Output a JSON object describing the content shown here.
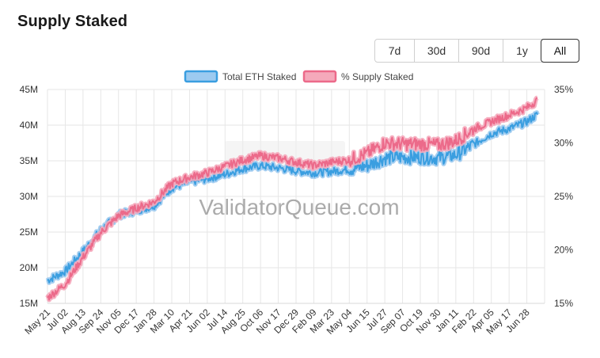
{
  "page": {
    "title": "Supply Staked"
  },
  "range_buttons": [
    {
      "label": "7d",
      "active": false
    },
    {
      "label": "30d",
      "active": false
    },
    {
      "label": "90d",
      "active": false
    },
    {
      "label": "1y",
      "active": false
    },
    {
      "label": "All",
      "active": true
    }
  ],
  "watermark": "ValidatorQueue.com",
  "colors": {
    "eth_line": "#3a9ee0",
    "eth_fill": "#9ccaf0",
    "supply_line": "#ec6a8a",
    "supply_fill": "#f5a9bb",
    "grid": "#e6e6e6"
  },
  "chart_data": {
    "type": "line",
    "legend_position": "top",
    "grid": true,
    "x_labels": [
      "May 21",
      "Jul 02",
      "Aug 13",
      "Sep 24",
      "Nov 05",
      "Dec 17",
      "Jan 28",
      "Mar 10",
      "Apr 21",
      "Jun 02",
      "Jul 14",
      "Aug 25",
      "Oct 06",
      "Nov 17",
      "Dec 29",
      "Feb 09",
      "Mar 23",
      "May 04",
      "Jun 15",
      "Jul 27",
      "Sep 07",
      "Oct 19",
      "Nov 30",
      "Jan 11",
      "Feb 22",
      "Apr 05",
      "May 17",
      "Jun 28"
    ],
    "y_left": {
      "ticks": [
        "15M",
        "20M",
        "25M",
        "30M",
        "35M",
        "40M",
        "45M"
      ],
      "min": 15,
      "max": 45,
      "unit": "M"
    },
    "y_right": {
      "ticks": [
        "15%",
        "20%",
        "25%",
        "30%",
        "35%"
      ],
      "min": 15,
      "max": 35,
      "unit": "%"
    },
    "series": [
      {
        "name": "Total ETH Staked",
        "axis": "left",
        "x_index": [
          0,
          1,
          2,
          3,
          4,
          5,
          6,
          7,
          8,
          9,
          10,
          11,
          12,
          13,
          14,
          15,
          16,
          17,
          18,
          19,
          20,
          21,
          22,
          23,
          24,
          25,
          26,
          27,
          27.6
        ],
        "values": [
          18.2,
          19.5,
          22.3,
          25.3,
          27.4,
          28.0,
          28.7,
          31.2,
          32.0,
          32.5,
          33.1,
          33.9,
          34.3,
          34.0,
          33.6,
          33.3,
          33.5,
          33.8,
          34.3,
          35.4,
          35.5,
          35.5,
          35.4,
          35.8,
          37.3,
          38.8,
          39.5,
          40.5,
          41.5
        ]
      },
      {
        "name": "% Supply Staked",
        "axis": "right",
        "x_index": [
          0,
          1,
          2,
          3,
          4,
          5,
          6,
          7,
          8,
          9,
          10,
          11,
          12,
          13,
          14,
          15,
          16,
          17,
          18,
          19,
          20,
          21,
          22,
          23,
          24,
          25,
          26,
          27,
          27.6
        ],
        "values": [
          15.5,
          16.8,
          19.3,
          21.6,
          23.2,
          23.9,
          24.5,
          26.2,
          26.8,
          27.2,
          27.8,
          28.4,
          28.8,
          28.6,
          28.2,
          27.9,
          28.2,
          28.4,
          29.0,
          30.0,
          29.9,
          29.9,
          29.8,
          30.2,
          31.3,
          32.0,
          32.6,
          33.3,
          34.0
        ]
      }
    ]
  }
}
